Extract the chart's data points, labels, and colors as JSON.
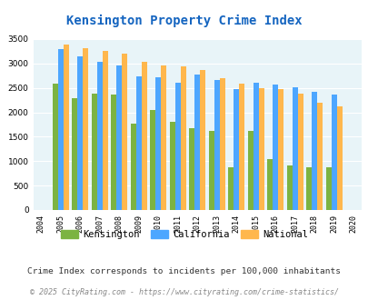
{
  "title": "Kensington Property Crime Index",
  "years": [
    2004,
    2005,
    2006,
    2007,
    2008,
    2009,
    2010,
    2011,
    2012,
    2013,
    2014,
    2015,
    2016,
    2017,
    2018,
    2019,
    2020
  ],
  "kensington": [
    null,
    2580,
    2280,
    2380,
    2360,
    1770,
    2040,
    1800,
    1680,
    1620,
    880,
    1620,
    1040,
    920,
    880,
    880,
    null
  ],
  "california": [
    null,
    3300,
    3150,
    3030,
    2950,
    2730,
    2720,
    2600,
    2770,
    2670,
    2470,
    2610,
    2560,
    2520,
    2420,
    2360,
    null
  ],
  "national": [
    null,
    3390,
    3320,
    3250,
    3200,
    3040,
    2960,
    2940,
    2870,
    2700,
    2580,
    2490,
    2470,
    2380,
    2200,
    2120,
    null
  ],
  "kensington_color": "#7cb342",
  "california_color": "#4da6ff",
  "national_color": "#ffb74d",
  "bg_color": "#e8f4f8",
  "ylim": [
    0,
    3500
  ],
  "yticks": [
    0,
    500,
    1000,
    1500,
    2000,
    2500,
    3000,
    3500
  ],
  "bar_width": 0.28,
  "legend_labels": [
    "Kensington",
    "California",
    "National"
  ],
  "subtitle": "Crime Index corresponds to incidents per 100,000 inhabitants",
  "footer": "© 2025 CityRating.com - https://www.cityrating.com/crime-statistics/",
  "title_color": "#1565c0",
  "subtitle_color": "#333333",
  "footer_color": "#888888"
}
